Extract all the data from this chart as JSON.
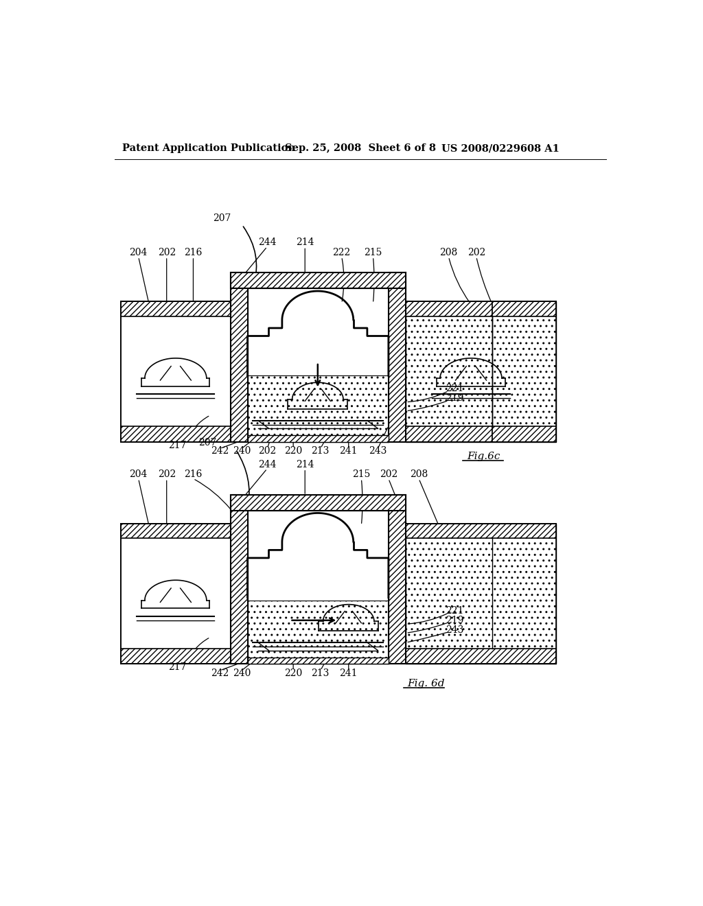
{
  "bg_color": "#ffffff",
  "header_left": "Patent Application Publication",
  "header_mid": "Sep. 25, 2008  Sheet 6 of 8",
  "header_right": "US 2008/0229608 A1",
  "fig6c_label": "Fig.6c",
  "fig6d_label": "Fig. 6d"
}
